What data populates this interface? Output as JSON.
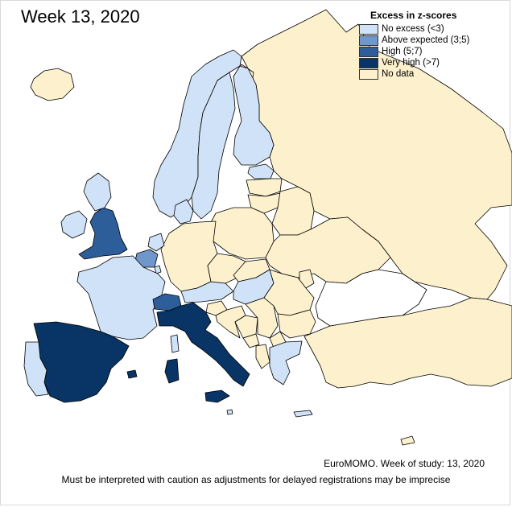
{
  "title": "Week 13, 2020",
  "legend": {
    "title": "Excess in z-scores",
    "items": [
      {
        "label": "No excess (<3)",
        "color": "#cfe2f7"
      },
      {
        "label": "Above expected (3;5)",
        "color": "#6f97cc"
      },
      {
        "label": "High (5;7)",
        "color": "#2d5e99"
      },
      {
        "label": "Very high (>7)",
        "color": "#083565"
      },
      {
        "label": "No data",
        "color": "#fdf1cd"
      }
    ]
  },
  "caption": "EuroMOMO. Week of study: 13, 2020",
  "footnote": "Must be interpreted with caution as adjustments for delayed registrations may be imprecise",
  "categories": {
    "none": "#cfe2f7",
    "above": "#6f97cc",
    "high": "#2d5e99",
    "very_high": "#083565",
    "no_data": "#fdf1cd",
    "blank": "#ffffff"
  }
}
